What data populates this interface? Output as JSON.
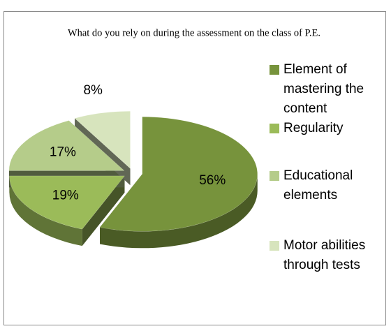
{
  "chart_data": {
    "type": "pie3d",
    "title": "What do you rely on during the assessment on the class of P.E.",
    "categories": [
      "Element of mastering the content",
      "Regularity",
      "Educational elements",
      "Motor abilities through tests"
    ],
    "values": [
      56,
      19,
      17,
      8
    ],
    "value_labels": [
      "56%",
      "19%",
      "17%",
      "8%"
    ],
    "colors": [
      "#77933c",
      "#9bbb59",
      "#b5cc8a",
      "#d7e4bd"
    ],
    "legend": "right"
  }
}
